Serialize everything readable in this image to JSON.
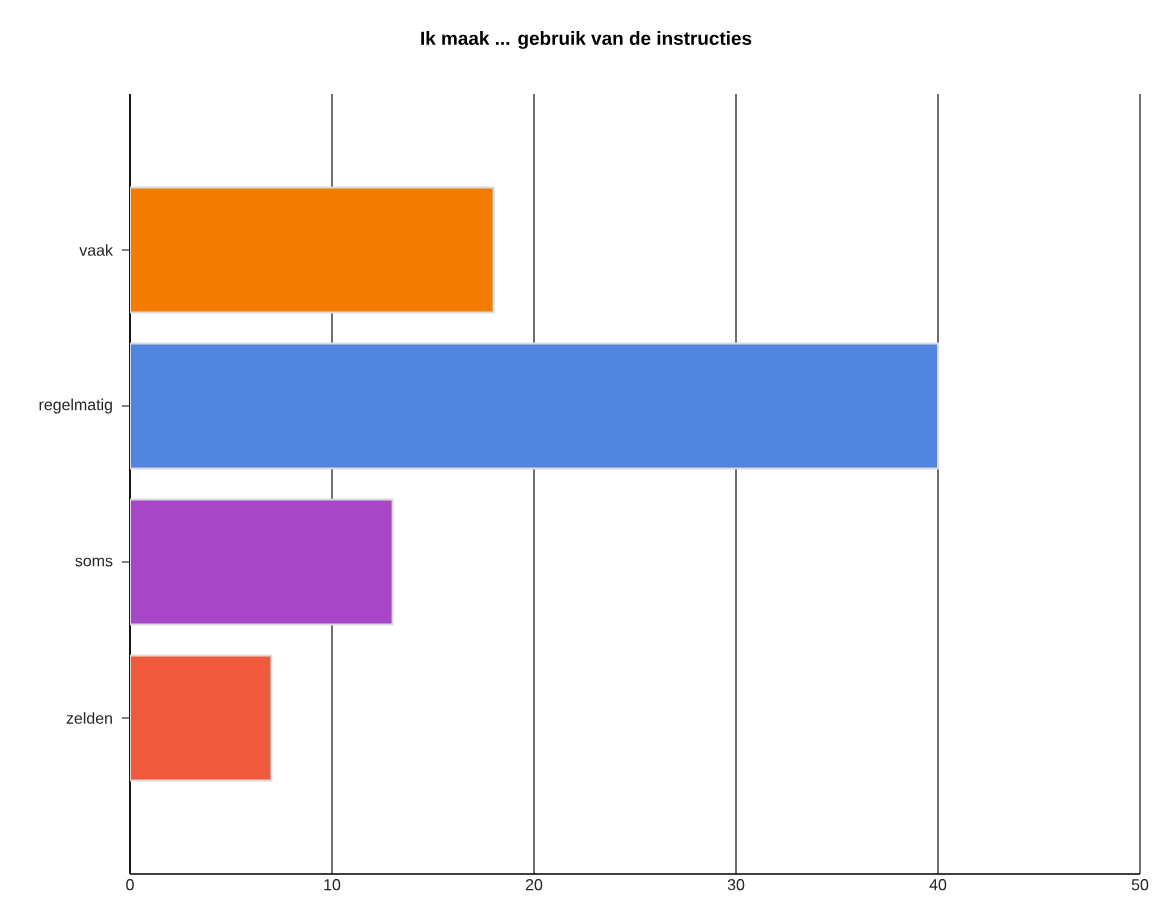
{
  "chart_data": {
    "type": "bar",
    "orientation": "horizontal",
    "title": "Ik maak ... gebruik van de instructies",
    "categories": [
      "vaak",
      "regelmatig",
      "soms",
      "zelden"
    ],
    "values": [
      18,
      40,
      13,
      7
    ],
    "colors": [
      "#f27b00",
      "#5285e0",
      "#a846c8",
      "#f05a3c"
    ],
    "xlim": [
      0,
      50
    ],
    "xticks": [
      0,
      10,
      20,
      30,
      40,
      50
    ],
    "grid": "x"
  }
}
